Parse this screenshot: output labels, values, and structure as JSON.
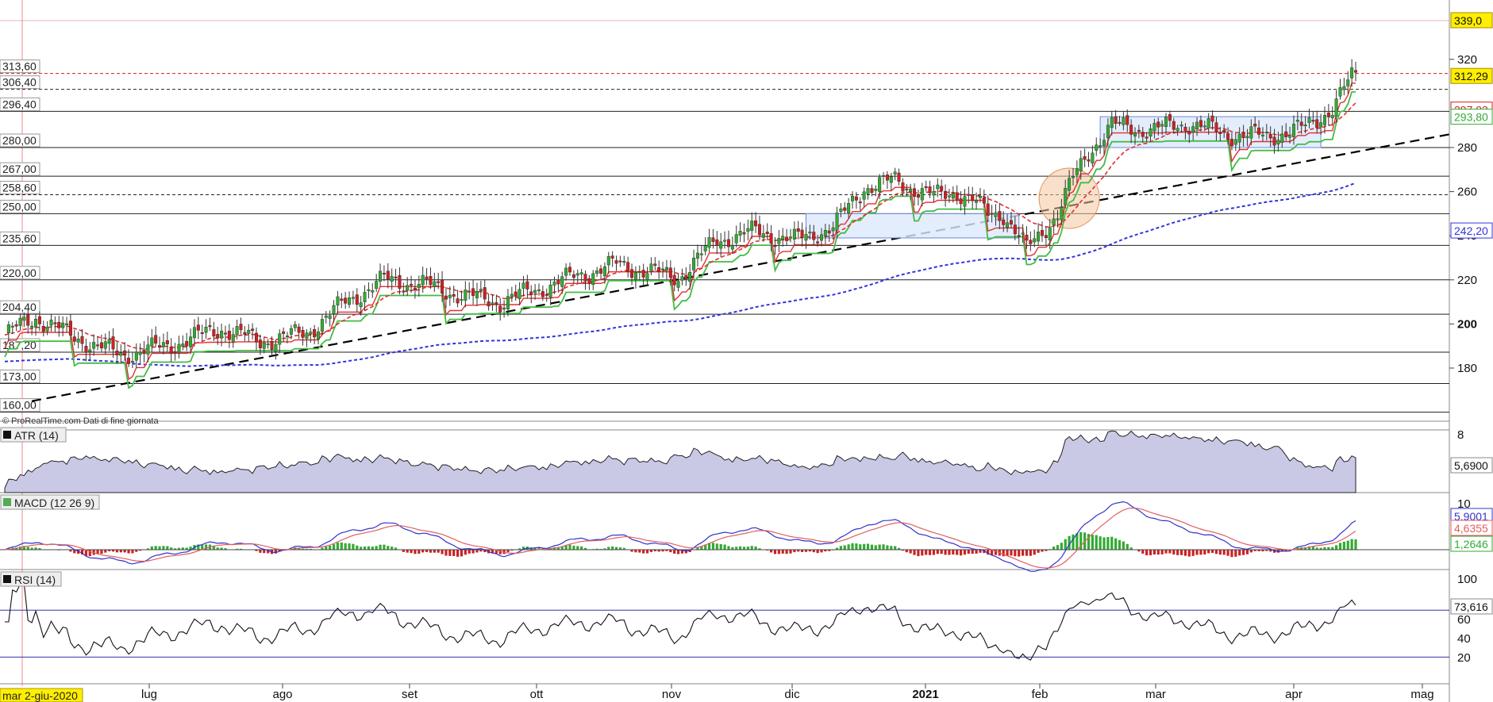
{
  "source_note": "© ProRealTime.com  Dati di fine giornata",
  "cursor_date": "mar 2-giu-2020",
  "colors": {
    "up": "#33aa33",
    "down": "#cc2222",
    "ma_fast": "#e03030",
    "stop_green": "#44bb44",
    "ma_slow": "#3333dd",
    "trend": "#000000",
    "box_fill": "#dde8fb",
    "box_stroke": "#6a8ad8",
    "circle_fill": "#f4c7a0",
    "circle_stroke": "#e08c4a",
    "price_tag_bg": "#ffee00",
    "atr_fill": "#c9c9e6",
    "macd_line": "#3333cc",
    "macd_signal": "#e06060",
    "rsi_line": "#111111"
  },
  "chart_data": {
    "type": "candlestick",
    "x_ticks": [
      "lug",
      "ago",
      "set",
      "ott",
      "nov",
      "dic",
      "2021",
      "feb",
      "mar",
      "apr",
      "mag"
    ],
    "price_axis": {
      "ticks": [
        180,
        200,
        220,
        240,
        260,
        280,
        320
      ],
      "range": [
        150,
        345
      ]
    },
    "last_price": "312,29",
    "top_price_tag": "339,0",
    "levels": [
      {
        "label": "313,60",
        "value": 313.6,
        "style": "dotted",
        "color": "#cc2222"
      },
      {
        "label": "306,40",
        "value": 306.4,
        "style": "dotted",
        "color": "#222222"
      },
      {
        "label": "296,40",
        "value": 296.4,
        "style": "solid",
        "color": "#222222"
      },
      {
        "label": "280,00",
        "value": 280.0,
        "style": "solid",
        "color": "#222222"
      },
      {
        "label": "267,00",
        "value": 267.0,
        "style": "solid",
        "color": "#222222"
      },
      {
        "label": "258,60",
        "value": 258.6,
        "style": "dotted",
        "color": "#222222"
      },
      {
        "label": "250,00",
        "value": 250.0,
        "style": "solid",
        "color": "#222222"
      },
      {
        "label": "235,60",
        "value": 235.6,
        "style": "solid",
        "color": "#222222"
      },
      {
        "label": "220,00",
        "value": 220.0,
        "style": "solid",
        "color": "#222222"
      },
      {
        "label": "204,40",
        "value": 204.4,
        "style": "solid",
        "color": "#222222"
      },
      {
        "label": "187,20",
        "value": 187.2,
        "style": "solid",
        "color": "#222222"
      },
      {
        "label": "173,00",
        "value": 173.0,
        "style": "solid",
        "color": "#222222"
      },
      {
        "label": "160,00",
        "value": 160.0,
        "style": "solid",
        "color": "#222222"
      }
    ],
    "right_tags": [
      {
        "label": "297,03",
        "value": 297.03,
        "color": "#cc2222"
      },
      {
        "label": "293,80",
        "value": 293.8,
        "color": "#33aa33"
      },
      {
        "label": "242,20",
        "value": 242.2,
        "color": "#3333dd"
      }
    ],
    "close_series_keypoints": [
      [
        0,
        195
      ],
      [
        8,
        203
      ],
      [
        18,
        194
      ],
      [
        30,
        186
      ],
      [
        42,
        190
      ],
      [
        56,
        198
      ],
      [
        66,
        192
      ],
      [
        78,
        196
      ],
      [
        88,
        210
      ],
      [
        98,
        220
      ],
      [
        108,
        218
      ],
      [
        118,
        213
      ],
      [
        128,
        210
      ],
      [
        138,
        216
      ],
      [
        148,
        222
      ],
      [
        158,
        227
      ],
      [
        166,
        224
      ],
      [
        174,
        221
      ],
      [
        184,
        238
      ],
      [
        194,
        242
      ],
      [
        204,
        238
      ],
      [
        214,
        244
      ],
      [
        222,
        262
      ],
      [
        230,
        265
      ],
      [
        240,
        258
      ],
      [
        246,
        260
      ],
      [
        250,
        256
      ],
      [
        254,
        250
      ],
      [
        258,
        250
      ],
      [
        264,
        234
      ],
      [
        268,
        242
      ],
      [
        272,
        250
      ],
      [
        276,
        266
      ],
      [
        280,
        278
      ],
      [
        286,
        290
      ],
      [
        296,
        288
      ],
      [
        306,
        291
      ],
      [
        316,
        286
      ],
      [
        326,
        285
      ],
      [
        336,
        289
      ],
      [
        343,
        298
      ],
      [
        348,
        312
      ]
    ],
    "indicators": [
      {
        "name": "ATR (14)",
        "value": "5,6900",
        "ticks": [
          8
        ]
      },
      {
        "name": "MACD (12 26 9)",
        "values": [
          "5,9001",
          "4,6355",
          "1,2646"
        ],
        "ticks": [
          10
        ]
      },
      {
        "name": "RSI (14)",
        "value": "73,616",
        "ticks": [
          100,
          60,
          40,
          20
        ]
      }
    ]
  }
}
